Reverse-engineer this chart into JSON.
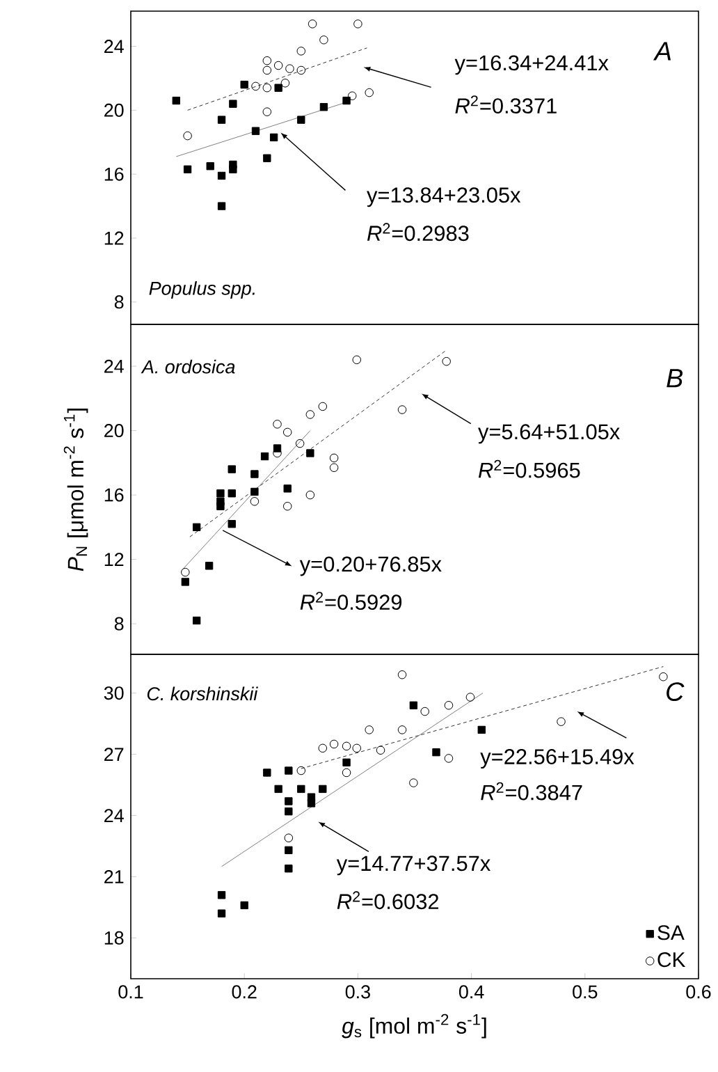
{
  "chart_data": [
    {
      "type": "scatter",
      "xlim": [
        0.1,
        0.6
      ],
      "ylim": [
        6.6,
        26.2
      ],
      "yticks": [
        8,
        12,
        16,
        20,
        24
      ],
      "tick_labels": "y",
      "annotations": [
        "A",
        "Populus spp.",
        "y=16.34+24.41x",
        "*R*$^{2}$=0.3371",
        {
          "text": "y=13.84+23.05x",
          "x": 0.232,
          "y": 18.6
        },
        "*R*$^{2}$=0.2983"
      ],
      "series": [
        {
          "color": "#000000",
          "marker": "square",
          "x": [
            0.14,
            0.15,
            0.17,
            0.18,
            0.18,
            0.19,
            0.19,
            0.19,
            0.18,
            0.2,
            0.21,
            0.22,
            0.226,
            0.23,
            0.25,
            0.27,
            0.29
          ],
          "values": [
            20.6,
            16.3,
            16.5,
            15.9,
            14.0,
            16.6,
            16.3,
            20.4,
            19.4,
            21.6,
            18.7,
            17.0,
            18.3,
            21.4,
            19.4,
            20.2,
            20.6
          ]
        },
        {
          "color": "#000000",
          "marker": "circle",
          "x": [
            0.15,
            0.22,
            0.21,
            0.22,
            0.22,
            0.22,
            0.23,
            0.24,
            0.25,
            0.236,
            0.25,
            0.26,
            0.27,
            0.3,
            0.295,
            0.31
          ],
          "values": [
            18.4,
            19.9,
            21.5,
            21.4,
            22.5,
            23.1,
            22.8,
            22.6,
            22.5,
            21.7,
            23.7,
            25.4,
            24.4,
            25.4,
            20.9,
            21.1
          ]
        },
        {
          "type": "line",
          "color": "#808080",
          "line_style": "solid",
          "marker": "none",
          "x": [
            0.14,
            0.29
          ],
          "values": [
            17.1,
            20.5
          ]
        },
        {
          "type": "line",
          "color": "#333333",
          "line_style": "dashed",
          "marker": "none",
          "x": [
            0.15,
            0.308
          ],
          "values": [
            20.0,
            23.9
          ]
        }
      ]
    },
    {
      "type": "scatter",
      "xlim": [
        0.1,
        0.6
      ],
      "ylim": [
        6.1,
        26.6
      ],
      "yticks": [
        8,
        12,
        16,
        20,
        24
      ],
      "tick_labels": "y",
      "ylabel": "*P*$_{N}$ [μmol m$^{-2}$ s$^{-1}$]",
      "annotations": [
        "B",
        "A. ordosica",
        "y=5.64+51.05x",
        "*R*$^{2}$=0.5965",
        {
          "text": "y=0.20+76.85x",
          "x": 0.181,
          "y": 13.8
        },
        "*R*$^{2}$=0.5929"
      ],
      "series": [
        {
          "color": "#000000",
          "marker": "square",
          "x": [
            0.148,
            0.158,
            0.158,
            0.169,
            0.179,
            0.179,
            0.179,
            0.189,
            0.189,
            0.189,
            0.209,
            0.209,
            0.218,
            0.229,
            0.238,
            0.258
          ],
          "values": [
            10.6,
            8.2,
            14.0,
            11.6,
            16.1,
            15.6,
            15.3,
            16.1,
            17.6,
            14.2,
            16.2,
            17.3,
            18.4,
            18.9,
            16.4,
            18.6
          ]
        },
        {
          "color": "#000000",
          "marker": "circle",
          "x": [
            0.148,
            0.209,
            0.229,
            0.229,
            0.238,
            0.238,
            0.249,
            0.258,
            0.258,
            0.269,
            0.279,
            0.279,
            0.299,
            0.339,
            0.378
          ],
          "values": [
            11.2,
            15.6,
            20.4,
            18.6,
            19.9,
            15.3,
            19.2,
            21.0,
            16.0,
            21.5,
            18.3,
            17.7,
            24.4,
            21.3,
            24.3
          ]
        },
        {
          "type": "line",
          "color": "#808080",
          "line_style": "solid",
          "marker": "none",
          "x": [
            0.146,
            0.258
          ],
          "values": [
            11.4,
            20.0
          ]
        },
        {
          "type": "line",
          "color": "#333333",
          "line_style": "dashed",
          "marker": "none",
          "x": [
            0.152,
            0.378
          ],
          "values": [
            13.4,
            25.0
          ]
        }
      ]
    },
    {
      "type": "scatter",
      "xlim": [
        0.1,
        0.6
      ],
      "ylim": [
        16.0,
        31.9
      ],
      "xticks": [
        0.1,
        0.2,
        0.3,
        0.4,
        0.5,
        0.6
      ],
      "yticks": [
        18,
        21,
        24,
        27,
        30
      ],
      "xlabel": "*g*$_{s}$  [mol m$^{-2}$ s$^{-1}$]",
      "legend": "bottom right",
      "annotations": [
        "C",
        "C. korshinskii",
        "y=22.56+15.49x",
        "*R*$^{2}$=0.3847",
        "y=14.77+37.57x",
        "*R*$^{2}$=0.6032"
      ],
      "series": [
        {
          "name": "SA",
          "color": "#000000",
          "marker": "square",
          "x": [
            0.18,
            0.18,
            0.2,
            0.22,
            0.23,
            0.239,
            0.239,
            0.239,
            0.239,
            0.239,
            0.25,
            0.259,
            0.259,
            0.269,
            0.29,
            0.349,
            0.369,
            0.409
          ],
          "values": [
            20.1,
            19.2,
            19.6,
            26.1,
            25.3,
            26.2,
            24.7,
            24.2,
            22.3,
            21.4,
            25.3,
            24.9,
            24.6,
            25.3,
            26.6,
            29.4,
            27.1,
            28.2
          ]
        },
        {
          "name": "CK",
          "color": "#000000",
          "marker": "circle",
          "x": [
            0.25,
            0.269,
            0.279,
            0.29,
            0.29,
            0.299,
            0.31,
            0.32,
            0.339,
            0.339,
            0.349,
            0.359,
            0.38,
            0.38,
            0.399,
            0.479,
            0.569,
            0.239
          ],
          "values": [
            26.2,
            27.3,
            27.5,
            27.4,
            26.1,
            27.3,
            28.2,
            27.2,
            30.9,
            28.2,
            25.6,
            29.1,
            26.8,
            29.4,
            29.8,
            28.6,
            30.8,
            22.9
          ]
        },
        {
          "type": "line",
          "color": "#808080",
          "line_style": "solid",
          "marker": "none",
          "x": [
            0.18,
            0.41
          ],
          "values": [
            21.5,
            30.0
          ]
        },
        {
          "type": "line",
          "color": "#333333",
          "line_style": "dashed",
          "marker": "none",
          "x": [
            0.25,
            0.569
          ],
          "values": [
            26.3,
            31.3
          ]
        }
      ]
    }
  ]
}
